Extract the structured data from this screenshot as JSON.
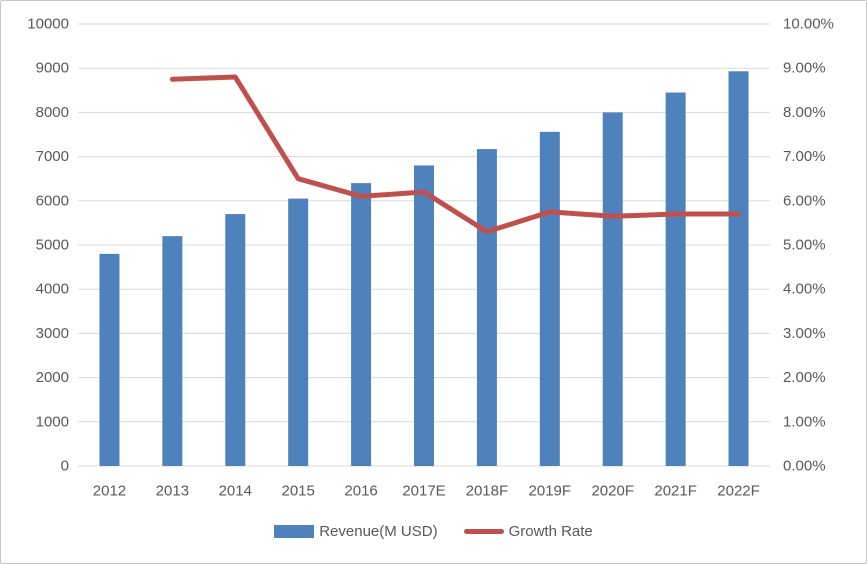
{
  "chart_data": {
    "type": "bar",
    "subtype": "combo-bar-line-dual-axis",
    "categories": [
      "2012",
      "2013",
      "2014",
      "2015",
      "2016",
      "2017E",
      "2018F",
      "2019F",
      "2020F",
      "2021F",
      "2022F"
    ],
    "series": [
      {
        "name": "Revenue(M USD)",
        "type": "bar",
        "axis": "left",
        "color": "#4f81bd",
        "values": [
          4800,
          5200,
          5700,
          6050,
          6400,
          6800,
          7170,
          7560,
          8000,
          8450,
          8930
        ]
      },
      {
        "name": "Growth Rate",
        "type": "line",
        "axis": "right",
        "color": "#c0504d",
        "values": [
          null,
          8.75,
          8.8,
          6.5,
          6.1,
          6.2,
          5.3,
          5.75,
          5.65,
          5.7,
          5.7
        ]
      }
    ],
    "title": "",
    "xlabel": "",
    "ylabel": "",
    "left_axis": {
      "min": 0,
      "max": 10000,
      "tick_labels": [
        "0",
        "1000",
        "2000",
        "3000",
        "4000",
        "5000",
        "6000",
        "7000",
        "8000",
        "9000",
        "10000"
      ]
    },
    "right_axis": {
      "min": 0,
      "max": 10,
      "tick_labels": [
        "0.00%",
        "1.00%",
        "2.00%",
        "3.00%",
        "4.00%",
        "5.00%",
        "6.00%",
        "7.00%",
        "8.00%",
        "9.00%",
        "10.00%"
      ]
    },
    "grid": true,
    "legend_position": "bottom",
    "colors": {
      "grid": "#d9d9d9",
      "text": "#595959",
      "background": "#ffffff",
      "border": "#c6c6c6"
    }
  },
  "legend": {
    "items": [
      {
        "label": "Revenue(M USD)",
        "color": "#4f81bd",
        "shape": "rect"
      },
      {
        "label": "Growth Rate",
        "color": "#c0504d",
        "shape": "line"
      }
    ]
  }
}
